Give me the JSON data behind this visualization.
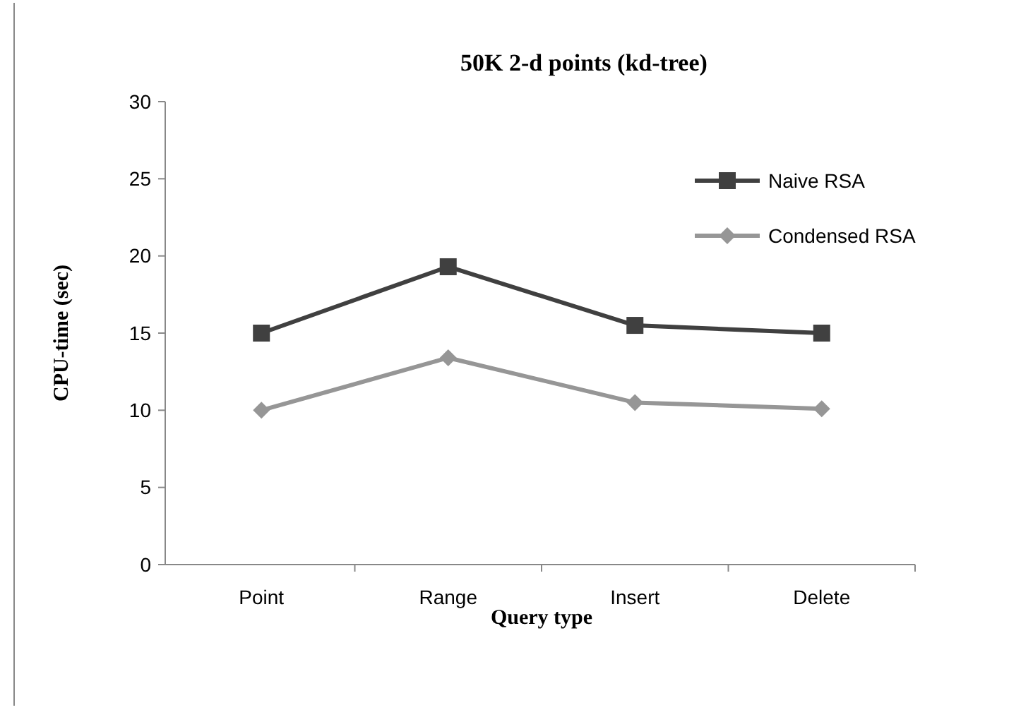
{
  "chart_data": {
    "type": "line",
    "title": "50K 2-d points (kd-tree)",
    "xlabel": "Query type",
    "ylabel": "CPU-time (sec)",
    "categories": [
      "Point",
      "Range",
      "Insert",
      "Delete"
    ],
    "series": [
      {
        "name": "Naive RSA",
        "color": "#404040",
        "marker": "square",
        "values": [
          15,
          19.3,
          15.5,
          15
        ]
      },
      {
        "name": "Condensed RSA",
        "color": "#969696",
        "marker": "diamond",
        "values": [
          10,
          13.4,
          10.5,
          10.1
        ]
      }
    ],
    "ylim": [
      0,
      30
    ],
    "yticks": [
      0,
      5,
      10,
      15,
      20,
      25,
      30
    ],
    "grid": false,
    "legend": "top right",
    "line_style": "solid"
  }
}
